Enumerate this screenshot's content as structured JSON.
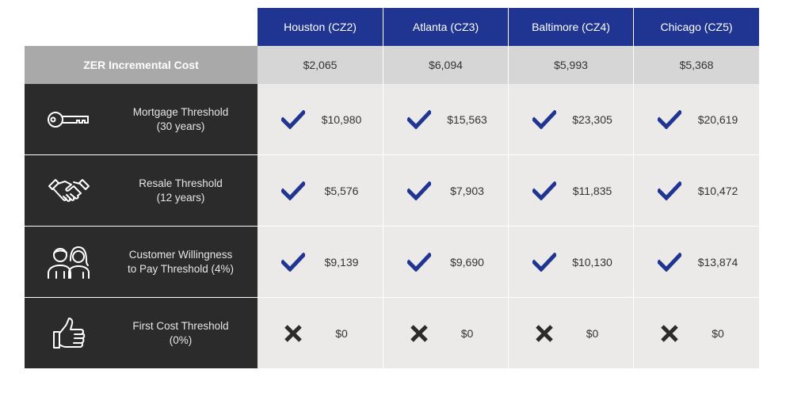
{
  "columns": [
    {
      "label": "Houston (CZ2)"
    },
    {
      "label": "Atlanta (CZ3)"
    },
    {
      "label": "Baltimore (CZ4)"
    },
    {
      "label": "Chicago (CZ5)"
    }
  ],
  "zer": {
    "label": "ZER Incremental Cost",
    "values": [
      "$2,065",
      "$6,094",
      "$5,993",
      "$5,368"
    ]
  },
  "rows": [
    {
      "icon": "key-icon",
      "label_line1": "Mortgage Threshold",
      "label_line2": "(30 years)",
      "cells": [
        {
          "status": "check",
          "value": "$10,980"
        },
        {
          "status": "check",
          "value": "$15,563"
        },
        {
          "status": "check",
          "value": "$23,305"
        },
        {
          "status": "check",
          "value": "$20,619"
        }
      ]
    },
    {
      "icon": "handshake-icon",
      "label_line1": "Resale Threshold",
      "label_line2": "(12 years)",
      "cells": [
        {
          "status": "check",
          "value": "$5,576"
        },
        {
          "status": "check",
          "value": "$7,903"
        },
        {
          "status": "check",
          "value": "$11,835"
        },
        {
          "status": "check",
          "value": "$10,472"
        }
      ]
    },
    {
      "icon": "people-icon",
      "label_line1": "Customer Willingness",
      "label_line2": "to Pay Threshold (4%)",
      "cells": [
        {
          "status": "check",
          "value": "$9,139"
        },
        {
          "status": "check",
          "value": "$9,690"
        },
        {
          "status": "check",
          "value": "$10,130"
        },
        {
          "status": "check",
          "value": "$13,874"
        }
      ]
    },
    {
      "icon": "thumbs-up-icon",
      "label_line1": "First Cost Threshold",
      "label_line2": "(0%)",
      "cells": [
        {
          "status": "cross",
          "value": "$0"
        },
        {
          "status": "cross",
          "value": "$0"
        },
        {
          "status": "cross",
          "value": "$0"
        },
        {
          "status": "cross",
          "value": "$0"
        }
      ]
    }
  ],
  "colors": {
    "header_blue": "#1f3591",
    "check_blue": "#1f3591",
    "cross_dark": "#2b2b2b"
  }
}
